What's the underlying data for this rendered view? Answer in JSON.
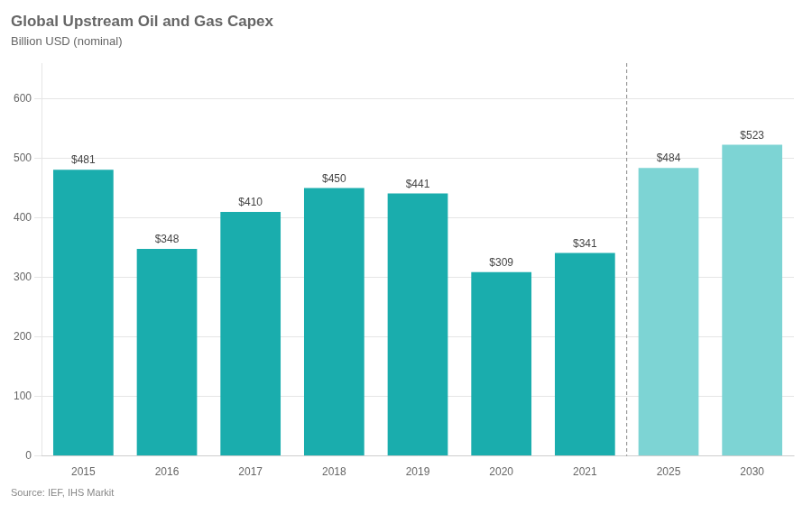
{
  "chart_data": {
    "type": "bar",
    "title": "Global Upstream Oil and Gas Capex",
    "subtitle": "Billion USD (nominal)",
    "annotations": [
      "Source: IEF, IHS Markit"
    ],
    "categories": [
      "2015",
      "2016",
      "2017",
      "2018",
      "2019",
      "2020",
      "2021",
      "2025",
      "2030"
    ],
    "values": [
      481,
      348,
      410,
      450,
      441,
      309,
      341,
      484,
      523
    ],
    "value_labels": [
      "$481",
      "$348",
      "$410",
      "$450",
      "$441",
      "$309",
      "$341",
      "$484",
      "$523"
    ],
    "colors": [
      "#1AADAD",
      "#1AADAD",
      "#1AADAD",
      "#1AADAD",
      "#1AADAD",
      "#1AADAD",
      "#1AADAD",
      "#7DD4D4",
      "#7DD4D4"
    ],
    "ylim": [
      0,
      660
    ],
    "yticks": [
      0,
      100,
      200,
      300,
      400,
      500,
      600
    ],
    "grid": true,
    "data_labels": true
  }
}
